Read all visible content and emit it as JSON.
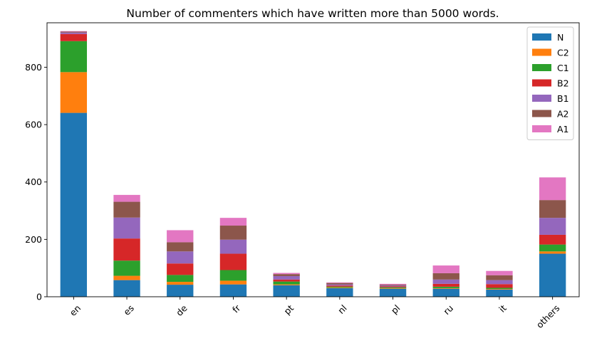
{
  "chart_data": {
    "type": "bar",
    "stacked": true,
    "title": "Number of commenters which have written more than 5000 words.",
    "xlabel": "",
    "ylabel": "",
    "categories": [
      "en",
      "es",
      "de",
      "fr",
      "pt",
      "nl",
      "pl",
      "ru",
      "it",
      "others"
    ],
    "ylim": [
      0,
      955
    ],
    "yticks": [
      0,
      200,
      400,
      600,
      800
    ],
    "grid": false,
    "legend_position": "top-right",
    "series": [
      {
        "name": "N",
        "color": "#1f77b4",
        "values": [
          641,
          58,
          42,
          43,
          40,
          30,
          28,
          28,
          25,
          150
        ]
      },
      {
        "name": "C2",
        "color": "#ff7f0e",
        "values": [
          142,
          15,
          10,
          13,
          3,
          2,
          2,
          2,
          2,
          8
        ]
      },
      {
        "name": "C1",
        "color": "#2ca02c",
        "values": [
          108,
          53,
          24,
          37,
          10,
          3,
          3,
          5,
          4,
          24
        ]
      },
      {
        "name": "B2",
        "color": "#d62728",
        "values": [
          25,
          77,
          40,
          57,
          7,
          4,
          3,
          10,
          13,
          34
        ]
      },
      {
        "name": "B1",
        "color": "#9467bd",
        "values": [
          5,
          73,
          42,
          49,
          12,
          4,
          3,
          15,
          14,
          59
        ]
      },
      {
        "name": "A2",
        "color": "#8c564b",
        "values": [
          3,
          55,
          32,
          49,
          7,
          5,
          3,
          22,
          17,
          62
        ]
      },
      {
        "name": "A1",
        "color": "#e377c2",
        "values": [
          2,
          24,
          42,
          27,
          4,
          2,
          3,
          27,
          15,
          79
        ]
      }
    ]
  }
}
